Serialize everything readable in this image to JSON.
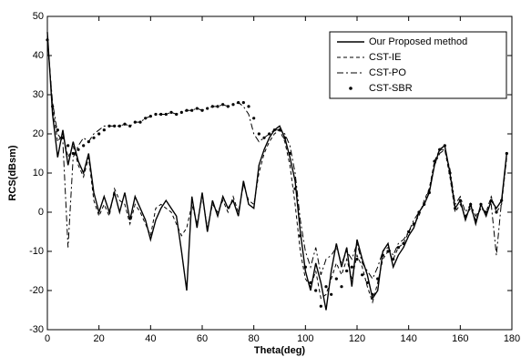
{
  "chart_data": {
    "type": "line",
    "xlabel": "Theta(deg)",
    "ylabel": "RCS(dBsm)",
    "xlim": [
      0,
      180
    ],
    "xticks": [
      0,
      20,
      40,
      60,
      80,
      100,
      120,
      140,
      160,
      180
    ],
    "ylim": [
      -30,
      50
    ],
    "yticks": [
      -30,
      -20,
      -10,
      0,
      10,
      20,
      30,
      40,
      50
    ],
    "grid": false,
    "legend": "northeast",
    "x": [
      0,
      2,
      4,
      6,
      8,
      10,
      12,
      14,
      16,
      18,
      20,
      22,
      24,
      26,
      28,
      30,
      32,
      34,
      36,
      38,
      40,
      42,
      44,
      46,
      48,
      50,
      52,
      54,
      56,
      58,
      60,
      62,
      64,
      66,
      68,
      70,
      72,
      74,
      76,
      78,
      80,
      82,
      84,
      86,
      88,
      90,
      92,
      94,
      96,
      98,
      100,
      102,
      104,
      106,
      108,
      110,
      112,
      114,
      116,
      118,
      120,
      122,
      124,
      126,
      128,
      130,
      132,
      134,
      136,
      138,
      140,
      142,
      144,
      146,
      148,
      150,
      152,
      154,
      156,
      158,
      160,
      162,
      164,
      166,
      168,
      170,
      172,
      174,
      176,
      178
    ],
    "series": [
      {
        "name": "Our Proposed method",
        "color": "#000000",
        "style": "solid",
        "values": [
          46,
          25,
          14,
          21,
          12,
          18,
          13,
          10,
          15,
          5,
          0,
          4,
          0,
          5,
          0,
          5,
          -2,
          4,
          1,
          -2,
          -7,
          -2,
          1,
          3,
          1,
          -1,
          -10,
          -20,
          4,
          -4,
          5,
          -5,
          3,
          -1,
          4,
          1,
          3,
          -1,
          8,
          2,
          1,
          12,
          16,
          19,
          21,
          22,
          19,
          14,
          8,
          -5,
          -15,
          -20,
          -13,
          -18,
          -25,
          -15,
          -8,
          -14,
          -9,
          -19,
          -7,
          -12,
          -16,
          -22,
          -20,
          -10,
          -8,
          -14,
          -11,
          -9,
          -6,
          -4,
          0,
          2,
          5,
          12,
          16,
          17,
          10,
          1,
          3,
          -2,
          2,
          -3,
          2,
          -1,
          3,
          1,
          3,
          15
        ]
      },
      {
        "name": "CST-IE",
        "color": "#000000",
        "style": "dashed",
        "values": [
          45,
          27,
          18,
          20,
          14,
          17,
          12,
          9,
          14,
          3,
          -1,
          2,
          -1,
          6,
          3,
          2,
          -3,
          2,
          0,
          -3,
          -6,
          1,
          2,
          1,
          0,
          -3,
          -6,
          -4,
          2,
          -3,
          4,
          -4,
          2,
          0,
          3,
          0,
          4,
          0,
          7,
          3,
          2,
          10,
          15,
          18,
          20,
          21,
          18,
          12,
          2,
          -10,
          -17,
          -19,
          -15,
          -22,
          -21,
          -17,
          -13,
          -16,
          -12,
          -17,
          -11,
          -14,
          -19,
          -23,
          -18,
          -12,
          -10,
          -12,
          -9,
          -8,
          -5,
          -3,
          -1,
          3,
          6,
          13,
          16,
          16,
          9,
          0,
          2,
          -1,
          1,
          -2,
          1,
          0,
          4,
          0,
          2,
          14
        ]
      },
      {
        "name": "CST-PO",
        "color": "#000000",
        "style": "dashdot",
        "values": [
          44,
          28,
          20,
          18,
          -9,
          14,
          17,
          19,
          18,
          20,
          21,
          22,
          22,
          22,
          22,
          22.5,
          22,
          23,
          23,
          24,
          24.5,
          25,
          25,
          25,
          25.5,
          25,
          25.5,
          26,
          26,
          26.5,
          26,
          26.5,
          27,
          27,
          27.5,
          27,
          27.5,
          28,
          27,
          25,
          20,
          18,
          19,
          20,
          21,
          21,
          20,
          17,
          10,
          -2,
          -10,
          -14,
          -9,
          -16,
          -12,
          -11,
          -9,
          -13,
          -10,
          -12,
          -8,
          -13,
          -15,
          -17,
          -14,
          -10,
          -9,
          -11,
          -8,
          -7,
          -5,
          -2,
          0,
          2,
          6,
          12,
          15,
          16,
          11,
          2,
          4,
          0,
          2,
          -1,
          1,
          0,
          2,
          -11,
          3,
          14
        ]
      },
      {
        "name": "CST-SBR",
        "color": "#000000",
        "style": "dots",
        "values": [
          44,
          27,
          21,
          19,
          17,
          15,
          16,
          17,
          18,
          19,
          20,
          21,
          22,
          22,
          22,
          22.5,
          22,
          23,
          23,
          24,
          24.5,
          25,
          25,
          25,
          25.5,
          25,
          25.5,
          26,
          26,
          26.5,
          26,
          26.5,
          27,
          27,
          27.5,
          27,
          27.5,
          28,
          28,
          27,
          24,
          20,
          19,
          20,
          21,
          21,
          19,
          15,
          6,
          -6,
          -14,
          -18,
          -20,
          -24,
          -19,
          -21,
          -17,
          -19,
          -15,
          -14,
          -12,
          -16,
          -18,
          -21,
          -17,
          -11,
          -10,
          -12,
          -9,
          -8,
          -5,
          -3,
          0,
          2,
          5,
          13,
          16,
          17,
          10,
          1,
          3,
          -1,
          2,
          -2,
          2,
          0,
          3,
          0,
          3,
          15
        ]
      }
    ]
  }
}
